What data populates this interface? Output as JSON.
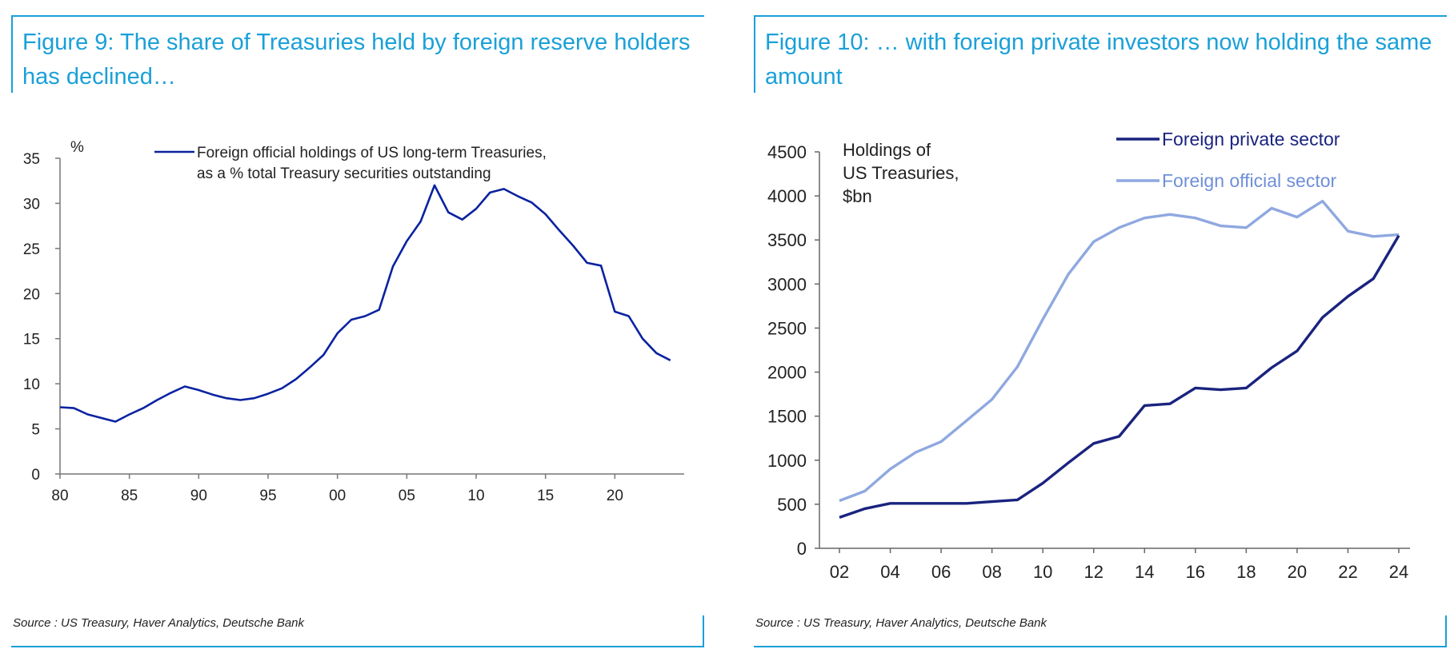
{
  "figures": [
    {
      "title": "Figure 9: The share of Treasuries held by foreign reserve holders has declined…",
      "source": "Source : US Treasury, Haver Analytics, Deutsche Bank"
    },
    {
      "title": "Figure 10: … with foreign private investors now holding the same amount",
      "source": "Source : US Treasury, Haver Analytics, Deutsche Bank"
    }
  ],
  "chart_data": [
    {
      "type": "line",
      "title": "Figure 9: The share of Treasuries held by foreign reserve holders has declined…",
      "ylabel": "%",
      "xlabel": "",
      "ylim": [
        0,
        35
      ],
      "xlim": [
        1980,
        2025
      ],
      "yticks": [
        0,
        5,
        10,
        15,
        20,
        25,
        30,
        35
      ],
      "xticks": [
        1980,
        1985,
        1990,
        1995,
        2000,
        2005,
        2010,
        2015,
        2020
      ],
      "xtick_labels": [
        "80",
        "85",
        "90",
        "95",
        "00",
        "05",
        "10",
        "15",
        "20"
      ],
      "grid": false,
      "legend_lines": [
        "Foreign official holdings of US long-term Treasuries,",
        "as a % total Treasury securities outstanding"
      ],
      "series": [
        {
          "name": "Foreign official holdings of US long-term Treasuries, as a % total Treasury securities outstanding",
          "color": "#0a22a0",
          "x": [
            1980,
            1981,
            1982,
            1983,
            1984,
            1985,
            1986,
            1987,
            1988,
            1989,
            1990,
            1991,
            1992,
            1993,
            1994,
            1995,
            1996,
            1997,
            1998,
            1999,
            2000,
            2001,
            2002,
            2003,
            2004,
            2005,
            2006,
            2007,
            2008,
            2009,
            2010,
            2011,
            2012,
            2013,
            2014,
            2015,
            2016,
            2017,
            2018,
            2019,
            2020,
            2021,
            2022,
            2023,
            2024
          ],
          "values": [
            7.4,
            7.3,
            6.6,
            6.2,
            5.8,
            6.6,
            7.3,
            8.2,
            9.0,
            9.7,
            9.3,
            8.8,
            8.4,
            8.2,
            8.4,
            8.9,
            9.5,
            10.5,
            11.8,
            13.2,
            15.6,
            17.1,
            17.5,
            18.2,
            23.0,
            25.8,
            28.0,
            32.0,
            29.0,
            28.2,
            29.4,
            31.2,
            31.6,
            30.8,
            30.1,
            28.8,
            27.0,
            25.3,
            23.4,
            23.1,
            18.0,
            17.5,
            15.0,
            13.4,
            12.6
          ]
        }
      ]
    },
    {
      "type": "line",
      "title": "Figure 10: … with foreign private investors now holding the same amount",
      "ylabel": "",
      "xlabel": "",
      "annotation": [
        "Holdings of",
        "US Treasuries,",
        "$bn"
      ],
      "ylim": [
        0,
        4500
      ],
      "xlim": [
        2002,
        2024
      ],
      "yticks": [
        0,
        500,
        1000,
        1500,
        2000,
        2500,
        3000,
        3500,
        4000,
        4500
      ],
      "xticks": [
        2002,
        2004,
        2006,
        2008,
        2010,
        2012,
        2014,
        2016,
        2018,
        2020,
        2022,
        2024
      ],
      "xtick_labels": [
        "02",
        "04",
        "06",
        "08",
        "10",
        "12",
        "14",
        "16",
        "18",
        "20",
        "22",
        "24"
      ],
      "grid": false,
      "series": [
        {
          "name": "Foreign private sector",
          "color": "#1a237e",
          "x": [
            2002,
            2003,
            2004,
            2005,
            2006,
            2007,
            2008,
            2009,
            2010,
            2011,
            2012,
            2013,
            2014,
            2015,
            2016,
            2017,
            2018,
            2019,
            2020,
            2021,
            2022,
            2023,
            2024
          ],
          "values": [
            350,
            450,
            510,
            510,
            510,
            510,
            530,
            550,
            740,
            970,
            1190,
            1270,
            1620,
            1640,
            1820,
            1800,
            1820,
            2050,
            2240,
            2620,
            2860,
            3060,
            3550
          ]
        },
        {
          "name": "Foreign official sector",
          "color": "#8fa8e0",
          "x": [
            2002,
            2003,
            2004,
            2005,
            2006,
            2007,
            2008,
            2009,
            2010,
            2011,
            2012,
            2013,
            2014,
            2015,
            2016,
            2017,
            2018,
            2019,
            2020,
            2021,
            2022,
            2023,
            2024
          ],
          "values": [
            540,
            650,
            900,
            1090,
            1210,
            1450,
            1690,
            2060,
            2600,
            3110,
            3480,
            3640,
            3750,
            3790,
            3750,
            3660,
            3640,
            3860,
            3760,
            3940,
            3600,
            3540,
            3560
          ]
        }
      ]
    }
  ]
}
